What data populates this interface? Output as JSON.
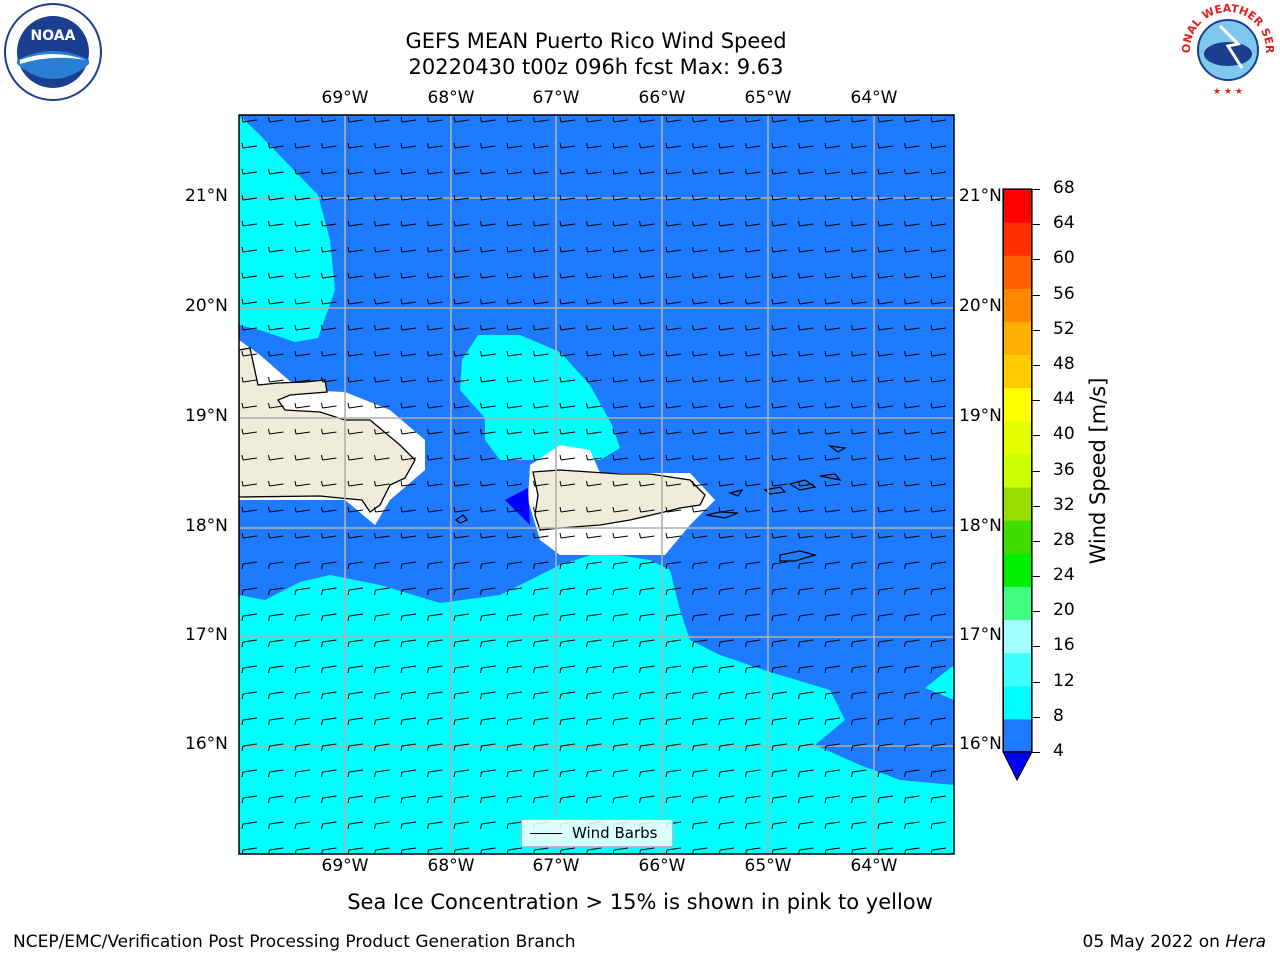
{
  "title": {
    "line1": "GEFS MEAN Puerto Rico Wind Speed",
    "line2": "20220430 t00z 096h fcst   Max: 9.63"
  },
  "map": {
    "lon_labels": [
      "69°W",
      "68°W",
      "67°W",
      "66°W",
      "65°W",
      "64°W"
    ],
    "lat_labels": [
      "21°N",
      "20°N",
      "19°N",
      "18°N",
      "17°N",
      "16°N"
    ],
    "colors": {
      "water_dark": "#1e7bff",
      "water_cyan": "#00ffff",
      "land": "#efedda",
      "mask": "#ffffff",
      "grid": "#b0b0b0",
      "below_min": "#0000ff"
    },
    "legend_label": "Wind Barbs"
  },
  "colorbar": {
    "label": "Wind Speed [m/s]",
    "ticks": [
      "68",
      "64",
      "60",
      "56",
      "52",
      "48",
      "44",
      "40",
      "36",
      "32",
      "28",
      "24",
      "20",
      "16",
      "12",
      "8",
      "4"
    ],
    "colors": [
      "#1e7bff",
      "#00ffff",
      "#40ffff",
      "#a0ffff",
      "#40ff80",
      "#00ee00",
      "#40dd00",
      "#99dd00",
      "#ccff00",
      "#e6ff00",
      "#ffff00",
      "#ffcc00",
      "#ffb000",
      "#ff8800",
      "#ff6000",
      "#ff3000",
      "#ff0000"
    ]
  },
  "caption": "Sea Ice Concentration > 15% is shown in pink to yellow",
  "footer": {
    "left": "NCEP/EMC/Verification Post Processing Product Generation Branch",
    "right_date": "05 May 2022 on",
    "right_machine": "Hera"
  },
  "logos": {
    "noaa": "NOAA",
    "nws": "NATIONAL WEATHER SERVICE"
  }
}
